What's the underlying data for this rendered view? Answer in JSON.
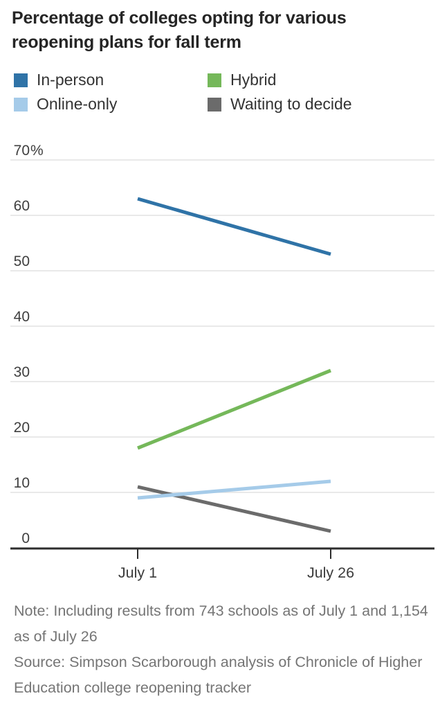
{
  "header": {
    "title": "Percentage of colleges opting for various reopening plans for fall term"
  },
  "legend": {
    "items": [
      {
        "label": "In-person",
        "color": "#2f73a7"
      },
      {
        "label": "Hybrid",
        "color": "#75b85a"
      },
      {
        "label": "Online-only",
        "color": "#a5cbe9"
      },
      {
        "label": "Waiting to decide",
        "color": "#6b6b6b"
      }
    ]
  },
  "chart_data": {
    "type": "line",
    "title": "Percentage of colleges opting for various reopening plans for fall term",
    "x": [
      "July 1",
      "July 26"
    ],
    "series": [
      {
        "name": "In-person",
        "color": "#2f73a7",
        "values": [
          63,
          53
        ]
      },
      {
        "name": "Hybrid",
        "color": "#75b85a",
        "values": [
          18,
          32
        ]
      },
      {
        "name": "Waiting to decide",
        "color": "#6b6b6b",
        "values": [
          11,
          3
        ]
      },
      {
        "name": "Online-only",
        "color": "#a5cbe9",
        "values": [
          9,
          12
        ]
      }
    ],
    "ylim": [
      0,
      70
    ],
    "yticks": [
      {
        "value": 0,
        "label": "0",
        "suffix": ""
      },
      {
        "value": 10,
        "label": "10",
        "suffix": ""
      },
      {
        "value": 20,
        "label": "20",
        "suffix": ""
      },
      {
        "value": 30,
        "label": "30",
        "suffix": ""
      },
      {
        "value": 40,
        "label": "40",
        "suffix": ""
      },
      {
        "value": 50,
        "label": "50",
        "suffix": ""
      },
      {
        "value": 60,
        "label": "60",
        "suffix": ""
      },
      {
        "value": 70,
        "label": "70",
        "suffix": "%"
      }
    ],
    "grid": true,
    "legend_position": "top"
  },
  "colors": {
    "gridline": "#e2e2e2",
    "axis": "#2d2d2d",
    "ytick_label": "#3f3f3f",
    "xtick_label": "#3b3b3b"
  },
  "footer": {
    "note": "Note: Including results from 743 schools as of July 1 and 1,154 as of July 26",
    "source": "Source: Simpson Scarborough analysis of Chronicle of Higher Education college reopening tracker"
  }
}
